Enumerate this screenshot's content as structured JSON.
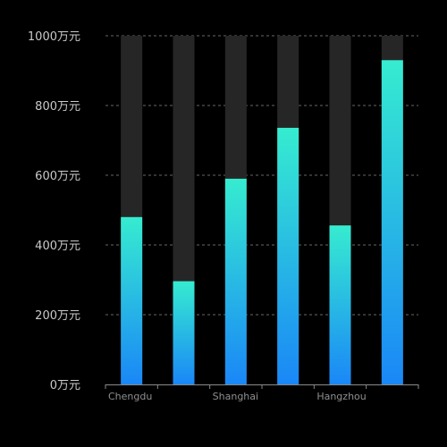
{
  "chart_data": {
    "type": "bar",
    "title": "",
    "xlabel": "",
    "ylabel": "",
    "categories": [
      "Chengdu",
      "",
      "Shanghai",
      "",
      "Hangzhou",
      ""
    ],
    "series": [
      {
        "values": [
          480,
          296,
          590,
          736,
          456,
          930
        ]
      }
    ],
    "background_max": 1000,
    "ylim": [
      0,
      1000
    ],
    "yticks": [
      0,
      200,
      400,
      600,
      800,
      1000
    ],
    "ytick_suffix": "万元",
    "ytick_labels": [
      "0万元",
      "200万元",
      "400万元",
      "600万元",
      "800万元",
      "1000万元"
    ],
    "grid": "dashed-horizontal",
    "colors": {
      "background": "#000000",
      "bar_background": "#262626",
      "bar_gradient_top": "#36ecd0",
      "bar_gradient_bottom": "#1a87f7",
      "grid": "#8a8a8a",
      "axis": "#8a8a8a"
    }
  }
}
